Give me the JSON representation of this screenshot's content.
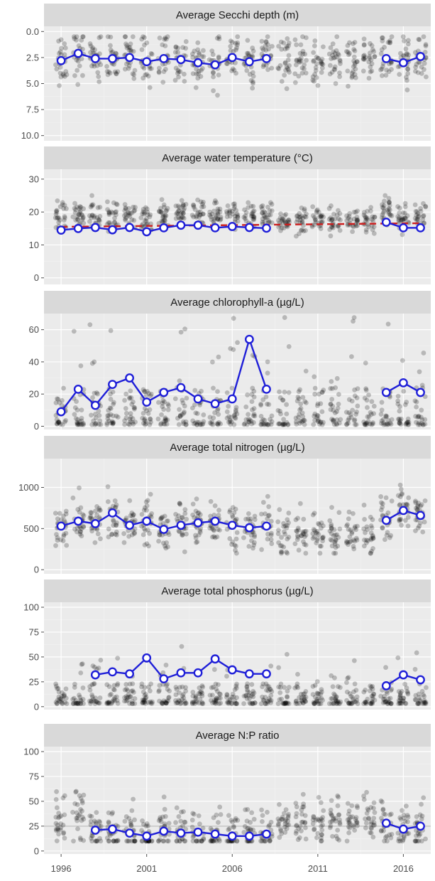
{
  "figure": {
    "x_ticks": [
      1996,
      2001,
      2006,
      2011,
      2016
    ],
    "xlim": [
      1995.0,
      2017.6
    ],
    "colors": {
      "panel_bg": "#ebebeb",
      "strip_bg": "#d9d9d9",
      "grid_major": "#ffffff",
      "grid_minor": "#f3f3f3",
      "points": "#000000",
      "mean_line": "#1f1fd8",
      "trend_line": "#cc1f1f",
      "ref_line": "#bdbdbd"
    }
  },
  "chart_data": [
    {
      "type": "scatter",
      "title": "Average Secchi depth (m)",
      "yticks": [
        "0.0",
        "2.5",
        "5.0",
        "7.5",
        "10.0"
      ],
      "ylim": [
        10.5,
        -0.5
      ],
      "y_reversed": true,
      "point_range": [
        0.5,
        8.0
      ],
      "series": [
        {
          "x": [
            1996,
            1997,
            1998,
            1999,
            2000,
            2001,
            2002,
            2003,
            2004,
            2005,
            2006,
            2007,
            2008
          ],
          "y": [
            2.8,
            2.1,
            2.6,
            2.6,
            2.5,
            2.9,
            2.6,
            2.7,
            3.0,
            3.2,
            2.5,
            2.9,
            2.6
          ]
        },
        {
          "x": [
            2015,
            2016,
            2017
          ],
          "y": [
            2.6,
            3.0,
            2.4
          ]
        }
      ]
    },
    {
      "type": "scatter",
      "title": "Average water temperature (°C)",
      "yticks": [
        "0",
        "10",
        "20",
        "30"
      ],
      "ylim": [
        -2,
        33
      ],
      "point_range": [
        9,
        25
      ],
      "trend": {
        "x": [
          1996,
          2017
        ],
        "y": [
          15.5,
          16.6
        ]
      },
      "series": [
        {
          "x": [
            1996,
            1997,
            1998,
            1999,
            2000,
            2001,
            2002,
            2003,
            2004,
            2005,
            2006,
            2007,
            2008
          ],
          "y": [
            14.5,
            15.0,
            15.3,
            14.6,
            15.3,
            14.0,
            15.2,
            16.0,
            16.0,
            15.2,
            15.6,
            15.3,
            15.1
          ]
        },
        {
          "x": [
            2015,
            2016,
            2017
          ],
          "y": [
            16.9,
            15.2,
            15.2
          ]
        }
      ]
    },
    {
      "type": "scatter",
      "title": "Average chlorophyll-a (µg/L)",
      "yticks": [
        "0",
        "20",
        "40",
        "60"
      ],
      "ylim": [
        -2,
        70
      ],
      "point_range": [
        1,
        68
      ],
      "series": [
        {
          "x": [
            1996,
            1997,
            1998,
            1999,
            2000,
            2001,
            2002,
            2003,
            2004,
            2005,
            2006,
            2007,
            2008
          ],
          "y": [
            9,
            23,
            13,
            26,
            30,
            15,
            21,
            24,
            17,
            14,
            17,
            54,
            23
          ]
        },
        {
          "x": [
            2015,
            2016,
            2017
          ],
          "y": [
            21,
            27,
            21
          ]
        }
      ]
    },
    {
      "type": "scatter",
      "title": "Average total nitrogen (µg/L)",
      "yticks": [
        "0",
        "500",
        "1000"
      ],
      "ylim": [
        -50,
        1350
      ],
      "point_range": [
        200,
        1090
      ],
      "series": [
        {
          "x": [
            1996,
            1997,
            1998,
            1999,
            2000,
            2001,
            2002,
            2003,
            2004,
            2005,
            2006,
            2007,
            2008
          ],
          "y": [
            530,
            590,
            560,
            690,
            540,
            590,
            490,
            540,
            570,
            590,
            540,
            510,
            530
          ]
        },
        {
          "x": [
            2015,
            2016,
            2017
          ],
          "y": [
            600,
            720,
            660
          ]
        }
      ]
    },
    {
      "type": "scatter",
      "title": "Average total phosphorus (µg/L)",
      "yticks": [
        "0",
        "25",
        "50",
        "75",
        "100"
      ],
      "ylim": [
        -3,
        105
      ],
      "point_range": [
        3,
        61
      ],
      "series": [
        {
          "x": [
            1998,
            1999,
            2000,
            2001,
            2002,
            2003,
            2004,
            2005,
            2006,
            2007,
            2008
          ],
          "y": [
            32,
            35,
            33,
            49,
            28,
            34,
            34,
            48,
            37,
            33,
            33
          ]
        },
        {
          "x": [
            2015,
            2016,
            2017
          ],
          "y": [
            21,
            32,
            27
          ]
        }
      ]
    },
    {
      "type": "scatter",
      "title": "Average N:P ratio",
      "yticks": [
        "0",
        "25",
        "50",
        "75",
        "100"
      ],
      "ylim": [
        -3,
        105
      ],
      "point_range": [
        10,
        90
      ],
      "ref_line": 25,
      "series": [
        {
          "x": [
            1998,
            1999,
            2000,
            2001,
            2002,
            2003,
            2004,
            2005,
            2006,
            2007,
            2008
          ],
          "y": [
            21,
            22,
            18,
            15,
            20,
            18,
            19,
            17,
            15,
            15,
            17
          ]
        },
        {
          "x": [
            2015,
            2016,
            2017
          ],
          "y": [
            28,
            22,
            25
          ]
        }
      ]
    }
  ]
}
